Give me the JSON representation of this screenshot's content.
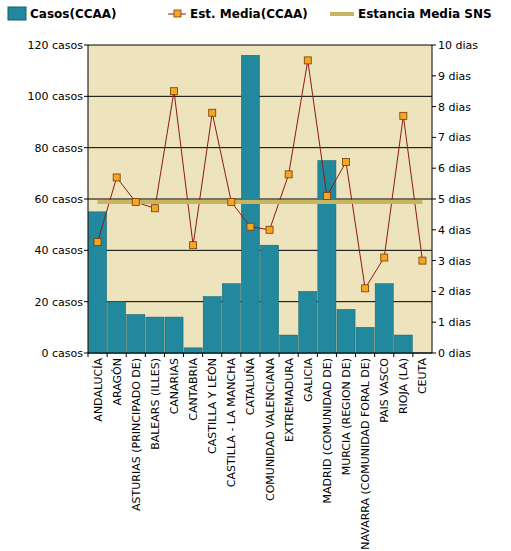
{
  "chart_data": {
    "type": "bar",
    "categories": [
      "ANDALUCÍA",
      "ARAGÓN",
      "ASTURIAS (PRINCIPADO DE)",
      "BALEARS (ILLES)",
      "CANARIAS",
      "CANTABRIA",
      "CASTILLA Y LEÓN",
      "CASTILLA - LA MANCHA",
      "CATALUÑA",
      "COMUNIDAD VALENCIANA",
      "EXTREMADURA",
      "GALICIA",
      "MADRID (COMUNIDAD DE)",
      "MURCIA (REGION DE)",
      "NAVARRA (COMUNIDAD FORAL DE)",
      "PAIS VASCO",
      "RIOJA (LA)",
      "CEUTA"
    ],
    "series": [
      {
        "name": "Casos(CCAA)",
        "type": "bar",
        "color": "#22889e",
        "values": [
          55,
          20,
          15,
          14,
          14,
          2,
          22,
          27,
          116,
          42,
          7,
          24,
          75,
          17,
          10,
          27,
          7,
          0
        ]
      },
      {
        "name": "Est. Media(CCAA)",
        "type": "line",
        "axis": "y2",
        "color": "#8b1a1a",
        "marker": "square",
        "values": [
          3.6,
          5.7,
          4.9,
          4.7,
          8.5,
          3.5,
          7.8,
          4.9,
          4.1,
          4.0,
          5.8,
          9.5,
          5.1,
          6.2,
          2.1,
          3.1,
          7.7,
          3.0
        ]
      },
      {
        "name": "Estancia Media SNS",
        "type": "line",
        "axis": "y2",
        "color": "#c8b560",
        "values": [
          4.9,
          4.9,
          4.9,
          4.9,
          4.9,
          4.9,
          4.9,
          4.9,
          4.9,
          4.9,
          4.9,
          4.9,
          4.9,
          4.9,
          4.9,
          4.9,
          4.9,
          4.9
        ]
      }
    ],
    "ylim": [
      0,
      120
    ],
    "yticks": [
      {
        "value": 0,
        "label": "0 casos"
      },
      {
        "value": 20,
        "label": "20 casos"
      },
      {
        "value": 40,
        "label": "40 casos"
      },
      {
        "value": 60,
        "label": "60 casos"
      },
      {
        "value": 80,
        "label": "80 casos"
      },
      {
        "value": 100,
        "label": "100 casos"
      },
      {
        "value": 120,
        "label": "120 casos"
      }
    ],
    "y2lim": [
      0,
      10
    ],
    "y2ticks": [
      {
        "value": 0,
        "label": "0 dias"
      },
      {
        "value": 1,
        "label": "1 dias"
      },
      {
        "value": 2,
        "label": "2 dias"
      },
      {
        "value": 3,
        "label": "3 dias"
      },
      {
        "value": 4,
        "label": "4 dias"
      },
      {
        "value": 5,
        "label": "5 dias"
      },
      {
        "value": 6,
        "label": "6 dias"
      },
      {
        "value": 7,
        "label": "7 dias"
      },
      {
        "value": 8,
        "label": "8 dias"
      },
      {
        "value": 9,
        "label": "9 dias"
      },
      {
        "value": 10,
        "label": "10 dias"
      }
    ],
    "grid": true,
    "legend": "top"
  }
}
